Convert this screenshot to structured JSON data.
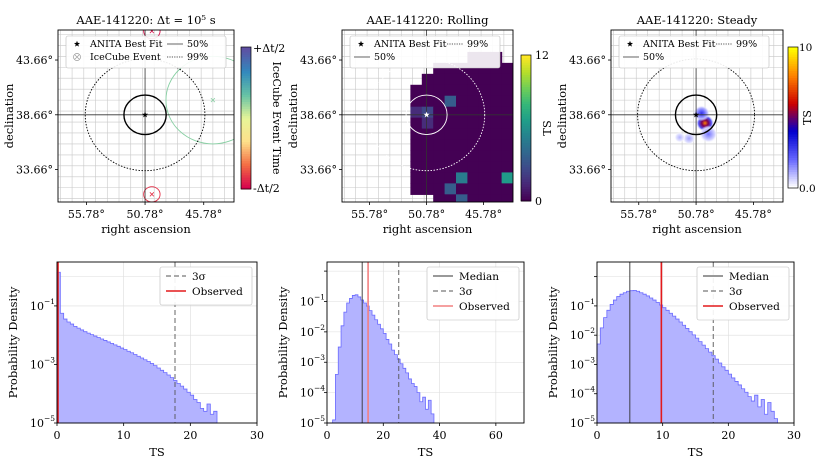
{
  "figure": {
    "width": 822,
    "height": 463
  },
  "chart_data": [
    {
      "type": "scatter",
      "title": "AAE-141220: Δt = 10⁵ s",
      "xlabel": "right ascension",
      "ylabel": "declination",
      "xticks": [
        "55.78°",
        "50.78°",
        "45.78°"
      ],
      "yticks": [
        "43.66°",
        "38.66°",
        "33.66°"
      ],
      "xlim": [
        58.2,
        43.2
      ],
      "ylim": [
        30.7,
        46.4
      ],
      "center": [
        50.78,
        38.66
      ],
      "contour_50_radius_deg": 1.8,
      "contour_99_radius_deg": 5.1,
      "legend": [
        {
          "label": "ANITA Best Fit",
          "marker": "star"
        },
        {
          "label": "50%",
          "line": "solid"
        },
        {
          "label": "IceCube Event",
          "marker": "circle-x"
        },
        {
          "label": "99%",
          "line": "dotted"
        }
      ],
      "events": [
        {
          "ra": 45.0,
          "dec": 40.0,
          "r": 4.0,
          "t": 0.25
        },
        {
          "ra": 50.2,
          "dec": 31.4,
          "r": 0.7,
          "t": -0.85
        },
        {
          "ra": 50.2,
          "dec": 46.3,
          "r": 0.7,
          "t": -0.95
        }
      ],
      "colorbar": {
        "label": "IceCube Event Time",
        "min_label": "-Δt/2",
        "max_label": "+Δt/2",
        "colors": [
          "#d6004e",
          "#f46d43",
          "#fee08b",
          "#e6f598",
          "#66c2a5",
          "#3288bd",
          "#5e4fa2"
        ]
      }
    },
    {
      "type": "heatmap",
      "title": "AAE-141220: Rolling",
      "xlabel": "right ascension",
      "ylabel": "declination",
      "xticks": [
        "55.78°",
        "50.78°",
        "45.78°"
      ],
      "yticks": [
        "43.66°",
        "38.66°",
        "33.66°"
      ],
      "xlim": [
        58.2,
        43.2
      ],
      "ylim": [
        30.7,
        46.4
      ],
      "center": [
        50.78,
        38.66
      ],
      "contour_50_radius_deg": 1.8,
      "contour_99_radius_deg": 5.1,
      "legend": [
        {
          "label": "ANITA Best Fit",
          "marker": "star"
        },
        {
          "label": "99%",
          "line": "dotted"
        },
        {
          "label": "50%",
          "line": "solid"
        }
      ],
      "grid_cell_deg": 1.0,
      "ts_grid": [
        "..........................",
        "..........................",
        "...........000............",
        "........00000000..........",
        ".......0000000000.........",
        "......000000000000........",
        "......0003000000000.......",
        "......1200000000000.......",
        "......0100000000000.......",
        "......0000000000000.......",
        "......0000000000005.......",
        "......0000000006667.......",
        "......0000000000646.......",
        "......0000400050000.......",
        "......0003000000066.......",
        "........003000007.........",
        ".........4095000..........",
        "..........00000...........",
        "..........................",
        ".........................."
      ],
      "ts_values": [
        0,
        1.5,
        2.5,
        3.5,
        5,
        6.5,
        8,
        9.5,
        11,
        12
      ],
      "colorbar": {
        "label": "TS",
        "ticks": [
          "0",
          "12"
        ],
        "min": 0,
        "max": 12,
        "colors": [
          "#440154",
          "#482878",
          "#3e4a89",
          "#31688e",
          "#26828e",
          "#1f9e89",
          "#35b779",
          "#6ece58",
          "#b5de2b",
          "#fde725"
        ]
      }
    },
    {
      "type": "heatmap",
      "title": "AAE-141220: Steady",
      "xlabel": "right ascension",
      "ylabel": "declination",
      "xticks": [
        "55.78°",
        "50.78°",
        "45.78°"
      ],
      "yticks": [
        "43.66°",
        "38.66°",
        "33.66°"
      ],
      "xlim": [
        58.2,
        43.2
      ],
      "ylim": [
        30.7,
        46.4
      ],
      "center": [
        50.78,
        38.66
      ],
      "contour_50_radius_deg": 1.8,
      "contour_99_radius_deg": 5.1,
      "legend": [
        {
          "label": "ANITA Best Fit",
          "marker": "star"
        },
        {
          "label": "99%",
          "line": "dotted"
        },
        {
          "label": "50%",
          "line": "solid"
        }
      ],
      "hotspots": [
        {
          "ra": 50.0,
          "dec": 37.9,
          "sigma": 0.5,
          "ts": 8.0
        },
        {
          "ra": 50.3,
          "dec": 38.8,
          "sigma": 0.45,
          "ts": 3.0
        },
        {
          "ra": 49.7,
          "dec": 36.9,
          "sigma": 0.5,
          "ts": 1.8
        },
        {
          "ra": 51.4,
          "dec": 36.5,
          "sigma": 0.35,
          "ts": 1.2
        },
        {
          "ra": 52.2,
          "dec": 36.6,
          "sigma": 0.3,
          "ts": 1.0
        }
      ],
      "colorbar": {
        "label": "TS",
        "ticks": [
          "0.0",
          "TS",
          "10"
        ],
        "min": 0,
        "max": 10,
        "colors": [
          "#ffffff",
          "#6666ff",
          "#0000d0",
          "#cc0000",
          "#ff8000",
          "#ffff00"
        ]
      }
    },
    {
      "type": "bar",
      "xlabel": "TS",
      "ylabel": "Probability Density",
      "xlim": [
        0,
        30
      ],
      "ylim_log10": [
        -5,
        0.5
      ],
      "xticks": [
        "0",
        "10",
        "20",
        "30"
      ],
      "yticks": [
        "10",
        "10",
        "10"
      ],
      "ytick_exponents": [
        "−5",
        "−3",
        "−1"
      ],
      "bin_width": 0.5,
      "density_log10": [
        0.15,
        -1.25,
        -1.45,
        -1.55,
        -1.62,
        -1.7,
        -1.76,
        -1.82,
        -1.88,
        -1.93,
        -1.98,
        -2.03,
        -2.08,
        -2.13,
        -2.18,
        -2.23,
        -2.28,
        -2.33,
        -2.38,
        -2.44,
        -2.49,
        -2.55,
        -2.6,
        -2.66,
        -2.72,
        -2.78,
        -2.84,
        -2.9,
        -2.97,
        -3.04,
        -3.12,
        -3.2,
        -3.28,
        -3.36,
        -3.45,
        -3.55,
        -3.65,
        -3.74,
        -3.84,
        -3.95,
        -4.05,
        -4.2,
        -4.3,
        -4.5,
        -4.6,
        -4.35,
        -4.7,
        -4.6
      ],
      "lines": [
        {
          "label": "3σ",
          "x": 17.7,
          "color": "#555555",
          "dash": "5,3"
        },
        {
          "label": "Observed",
          "x": 0.15,
          "color": "#e31a1c",
          "dash": ""
        }
      ],
      "series": [
        {
          "name": "",
          "color": "#b3b3ff"
        }
      ]
    },
    {
      "type": "bar",
      "xlabel": "TS",
      "ylabel": "Probability Density",
      "xlim": [
        0,
        70
      ],
      "ylim_log10": [
        -5,
        0.3
      ],
      "xticks": [
        "0",
        "20",
        "40",
        "60"
      ],
      "yticks": [
        "10",
        "10",
        "10",
        "10",
        "10",
        "10"
      ],
      "ytick_exponents": [
        "−5",
        "−4",
        "−3",
        "−2",
        "−1",
        ""
      ],
      "bin_width": 1,
      "density_log10": [
        -5,
        -5,
        -4.9,
        -3.4,
        -2.5,
        -1.8,
        -1.35,
        -1.05,
        -0.9,
        -0.8,
        -0.78,
        -0.85,
        -0.95,
        -1.05,
        -1.15,
        -1.3,
        -1.45,
        -1.6,
        -1.75,
        -1.9,
        -2.05,
        -2.25,
        -2.4,
        -2.6,
        -2.75,
        -2.9,
        -3.05,
        -3.2,
        -3.35,
        -3.55,
        -3.7,
        -3.8,
        -4.0,
        -4.3,
        -4.15,
        -4.55,
        -4.25,
        -4.7
      ],
      "lines": [
        {
          "label": "Median",
          "x": 12.5,
          "color": "#333333",
          "dash": ""
        },
        {
          "label": "3σ",
          "x": 25.5,
          "color": "#555555",
          "dash": "5,3"
        },
        {
          "label": "Observed",
          "x": 14.6,
          "color": "#f28080",
          "dash": ""
        }
      ],
      "series": [
        {
          "name": "",
          "color": "#b3b3ff"
        }
      ]
    },
    {
      "type": "bar",
      "xlabel": "TS",
      "ylabel": "Probability Density",
      "xlim": [
        0,
        30
      ],
      "ylim_log10": [
        -5,
        0.5
      ],
      "xticks": [
        "0",
        "10",
        "20",
        "30"
      ],
      "yticks": [
        "10",
        "10",
        "10",
        "10",
        "10",
        "10"
      ],
      "ytick_exponents": [
        "−5",
        "−4",
        "−3",
        "−2",
        "−1",
        ""
      ],
      "bin_width": 0.5,
      "density_log10": [
        -2.3,
        -1.75,
        -1.4,
        -1.15,
        -0.95,
        -0.8,
        -0.68,
        -0.6,
        -0.55,
        -0.5,
        -0.48,
        -0.47,
        -0.5,
        -0.55,
        -0.6,
        -0.66,
        -0.73,
        -0.8,
        -0.88,
        -0.97,
        -1.06,
        -1.15,
        -1.25,
        -1.35,
        -1.45,
        -1.55,
        -1.66,
        -1.77,
        -1.88,
        -1.99,
        -2.1,
        -2.22,
        -2.34,
        -2.46,
        -2.58,
        -2.7,
        -2.82,
        -2.95,
        -3.08,
        -3.2,
        -3.33,
        -3.46,
        -3.58,
        -3.7,
        -3.83,
        -3.95,
        -4.1,
        -4.25,
        -4.05,
        -4.45,
        -4.2,
        -4.7,
        -4.3,
        -4.6,
        -4.85
      ],
      "lines": [
        {
          "label": "Median",
          "x": 5.0,
          "color": "#333333",
          "dash": ""
        },
        {
          "label": "3σ",
          "x": 17.7,
          "color": "#555555",
          "dash": "5,3"
        },
        {
          "label": "Observed",
          "x": 9.8,
          "color": "#e31a1c",
          "dash": ""
        }
      ],
      "series": [
        {
          "name": "",
          "color": "#b3b3ff"
        }
      ]
    }
  ]
}
